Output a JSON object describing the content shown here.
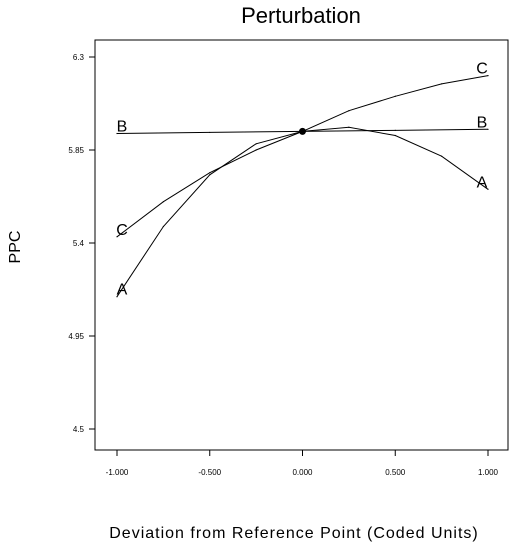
{
  "chart_data": {
    "type": "line",
    "title": "Perturbation",
    "xlabel": "Deviation from Reference Point (Coded Units)",
    "ylabel": "PPC",
    "xlim": [
      -1.0,
      1.0
    ],
    "ylim": [
      4.5,
      6.3
    ],
    "x_ticks": [
      "-1.000",
      "-0.500",
      "0.000",
      "0.500",
      "1.000"
    ],
    "y_ticks": [
      "4.5",
      "4.95",
      "5.4",
      "5.85",
      "6.3"
    ],
    "grid": false,
    "legend": "none",
    "reference_point": {
      "x": 0.0,
      "y": 5.94
    },
    "series": [
      {
        "name": "A",
        "x": [
          -1.0,
          -0.75,
          -0.5,
          -0.25,
          0.0,
          0.25,
          0.5,
          0.75,
          1.0
        ],
        "values": [
          5.14,
          5.48,
          5.73,
          5.88,
          5.94,
          5.96,
          5.92,
          5.82,
          5.66
        ]
      },
      {
        "name": "B",
        "x": [
          -1.0,
          -0.5,
          0.0,
          0.5,
          1.0
        ],
        "values": [
          5.93,
          5.935,
          5.94,
          5.945,
          5.95
        ]
      },
      {
        "name": "C",
        "x": [
          -1.0,
          -0.75,
          -0.5,
          -0.25,
          0.0,
          0.25,
          0.5,
          0.75,
          1.0
        ],
        "values": [
          5.43,
          5.6,
          5.74,
          5.85,
          5.94,
          6.04,
          6.11,
          6.17,
          6.21
        ]
      }
    ]
  }
}
